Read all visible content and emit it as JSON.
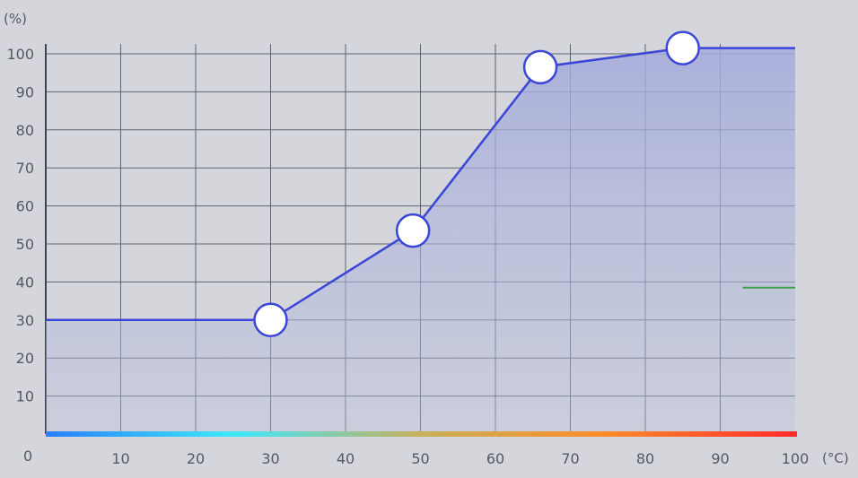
{
  "chart_data": {
    "type": "area",
    "y_unit": "(%)",
    "x_unit": "(°C)",
    "origin_label": "0",
    "xlim": [
      0,
      100
    ],
    "ylim": [
      0,
      100
    ],
    "x_ticks": [
      10,
      20,
      30,
      40,
      50,
      60,
      70,
      80,
      90,
      100
    ],
    "y_ticks": [
      10,
      20,
      30,
      40,
      50,
      60,
      70,
      80,
      90,
      100
    ],
    "grid": true,
    "x_ticks_labels": [
      "10",
      "20",
      "30",
      "40",
      "50",
      "60",
      "70",
      "80",
      "90",
      "100"
    ],
    "y_ticks_labels": [
      "10",
      "20",
      "30",
      "40",
      "50",
      "60",
      "70",
      "80",
      "90",
      "100"
    ],
    "series": [
      {
        "x": [
          0,
          30,
          49,
          66,
          85,
          100
        ],
        "y": [
          30,
          30,
          53.5,
          96.5,
          101.5,
          101.5
        ],
        "color": "#3a46d8",
        "fill": "#9fa6dc"
      }
    ],
    "control_points": [
      {
        "x": 30,
        "y": 30
      },
      {
        "x": 49,
        "y": 53.5
      },
      {
        "x": 66,
        "y": 96.5
      },
      {
        "x": 85,
        "y": 101.5
      }
    ],
    "reference_mark": {
      "x": [
        93,
        100
      ],
      "y": 38.5,
      "color": "#3fa24a"
    },
    "gradient_colors": [
      "#2a7fff",
      "#3ee8ff",
      "#c8b15a",
      "#ff8a2a",
      "#ff2a2a"
    ],
    "grid_color": "#5d6472"
  }
}
